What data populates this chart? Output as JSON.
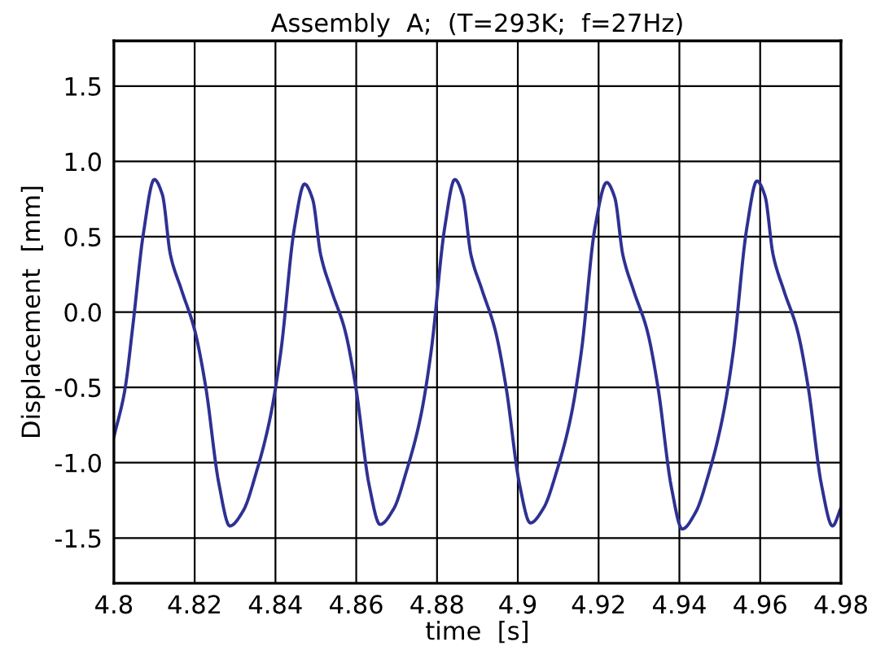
{
  "chart_data": {
    "type": "line",
    "title": "Assembly  A;  (T=293K;  f=27Hz)",
    "xlabel": "time  [s]",
    "ylabel": "Displacement  [mm]",
    "xlim": [
      4.8,
      4.98
    ],
    "xticks": [
      4.8,
      4.82,
      4.84,
      4.86,
      4.88,
      4.9,
      4.92,
      4.94,
      4.96,
      4.98
    ],
    "ylim": [
      -1.8,
      1.8
    ],
    "yticks": [
      {
        "value": -1.5,
        "label": "-1.5"
      },
      {
        "value": -1.0,
        "label": "-1.0"
      },
      {
        "value": -0.5,
        "label": "-0.5"
      },
      {
        "value": 0.0,
        "label": "0.0"
      },
      {
        "value": 0.5,
        "label": "0.5"
      },
      {
        "value": 1.0,
        "label": "1.0"
      },
      {
        "value": 1.5,
        "label": "1.5"
      }
    ],
    "grid": true,
    "marker": "none",
    "line_style": "solid",
    "series": [
      {
        "color": "#2e3192",
        "x": [
          4.8,
          4.8027,
          4.8047,
          4.8073,
          4.81,
          4.812,
          4.814,
          4.8167,
          4.82,
          4.8227,
          4.826,
          4.8287,
          4.832,
          4.8353,
          4.8387,
          4.8413,
          4.8447,
          4.8472,
          4.8492,
          4.8512,
          4.8539,
          4.8572,
          4.8599,
          4.8632,
          4.8659,
          4.8692,
          4.8725,
          4.8759,
          4.8785,
          4.8819,
          4.8844,
          4.8864,
          4.8884,
          4.8911,
          4.8944,
          4.8971,
          4.9004,
          4.9031,
          4.9064,
          4.9097,
          4.9131,
          4.9157,
          4.9191,
          4.922,
          4.924,
          4.926,
          4.9287,
          4.932,
          4.9347,
          4.938,
          4.9407,
          4.944,
          4.9473,
          4.9507,
          4.9533,
          4.9567,
          4.9592,
          4.9612,
          4.9632,
          4.9659,
          4.9692,
          4.9719,
          4.9752,
          4.9779,
          4.98
        ],
        "values": [
          -0.83,
          -0.52,
          -0.09,
          0.52,
          0.88,
          0.78,
          0.38,
          0.15,
          -0.12,
          -0.49,
          -1.14,
          -1.42,
          -1.32,
          -1.06,
          -0.7,
          -0.27,
          0.56,
          0.85,
          0.75,
          0.38,
          0.14,
          -0.12,
          -0.5,
          -1.15,
          -1.41,
          -1.31,
          -1.05,
          -0.7,
          -0.27,
          0.56,
          0.88,
          0.77,
          0.38,
          0.15,
          -0.12,
          -0.5,
          -1.14,
          -1.4,
          -1.3,
          -1.05,
          -0.7,
          -0.27,
          0.56,
          0.86,
          0.76,
          0.38,
          0.14,
          -0.12,
          -0.5,
          -1.16,
          -1.44,
          -1.33,
          -1.07,
          -0.7,
          -0.27,
          0.56,
          0.87,
          0.77,
          0.38,
          0.14,
          -0.12,
          -0.5,
          -1.15,
          -1.42,
          -1.3
        ]
      }
    ]
  }
}
